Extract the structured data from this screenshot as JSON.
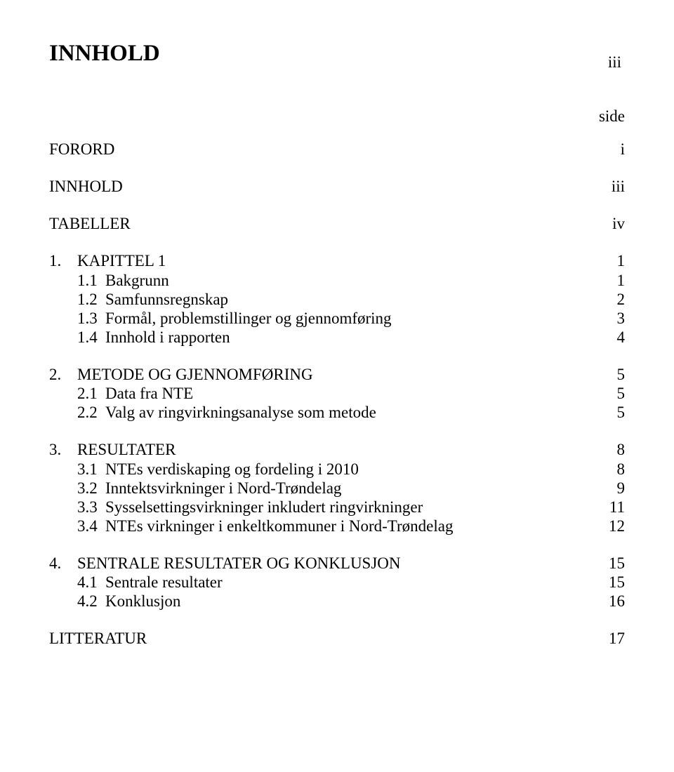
{
  "page_marker": "iii",
  "title": "INNHOLD",
  "side_label": "side",
  "front": [
    {
      "label": "FORORD",
      "page": "i"
    },
    {
      "label": "INNHOLD",
      "page": "iii"
    },
    {
      "label": "TABELLER",
      "page": "iv"
    }
  ],
  "sections": [
    {
      "num": "1.",
      "label": "KAPITTEL 1",
      "page": "1",
      "items": [
        {
          "num": "1.1",
          "label": "Bakgrunn",
          "page": "1"
        },
        {
          "num": "1.2",
          "label": "Samfunnsregnskap",
          "page": "2"
        },
        {
          "num": "1.3",
          "label": "Formål, problemstillinger og gjennomføring",
          "page": "3"
        },
        {
          "num": "1.4",
          "label": "Innhold i rapporten",
          "page": "4"
        }
      ]
    },
    {
      "num": "2.",
      "label": "METODE OG GJENNOMFØRING",
      "page": "5",
      "items": [
        {
          "num": "2.1",
          "label": "Data fra NTE",
          "page": "5"
        },
        {
          "num": "2.2",
          "label": "Valg av ringvirkningsanalyse som metode",
          "page": "5"
        }
      ]
    },
    {
      "num": "3.",
      "label": "RESULTATER",
      "page": "8",
      "items": [
        {
          "num": "3.1",
          "label": "NTEs verdiskaping og fordeling i 2010",
          "page": "8"
        },
        {
          "num": "3.2",
          "label": "Inntektsvirkninger i Nord-Trøndelag",
          "page": "9"
        },
        {
          "num": "3.3",
          "label": "Sysselsettingsvirkninger inkludert ringvirkninger",
          "page": "11"
        },
        {
          "num": "3.4",
          "label": "NTEs virkninger i enkeltkommuner i Nord-Trøndelag",
          "page": "12"
        }
      ]
    },
    {
      "num": "4.",
      "label": "SENTRALE RESULTATER OG KONKLUSJON",
      "page": "15",
      "items": [
        {
          "num": "4.1",
          "label": "Sentrale resultater",
          "page": "15"
        },
        {
          "num": "4.2",
          "label": "Konklusjon",
          "page": "16"
        }
      ]
    }
  ],
  "back": [
    {
      "label": "LITTERATUR",
      "page": "17"
    }
  ]
}
